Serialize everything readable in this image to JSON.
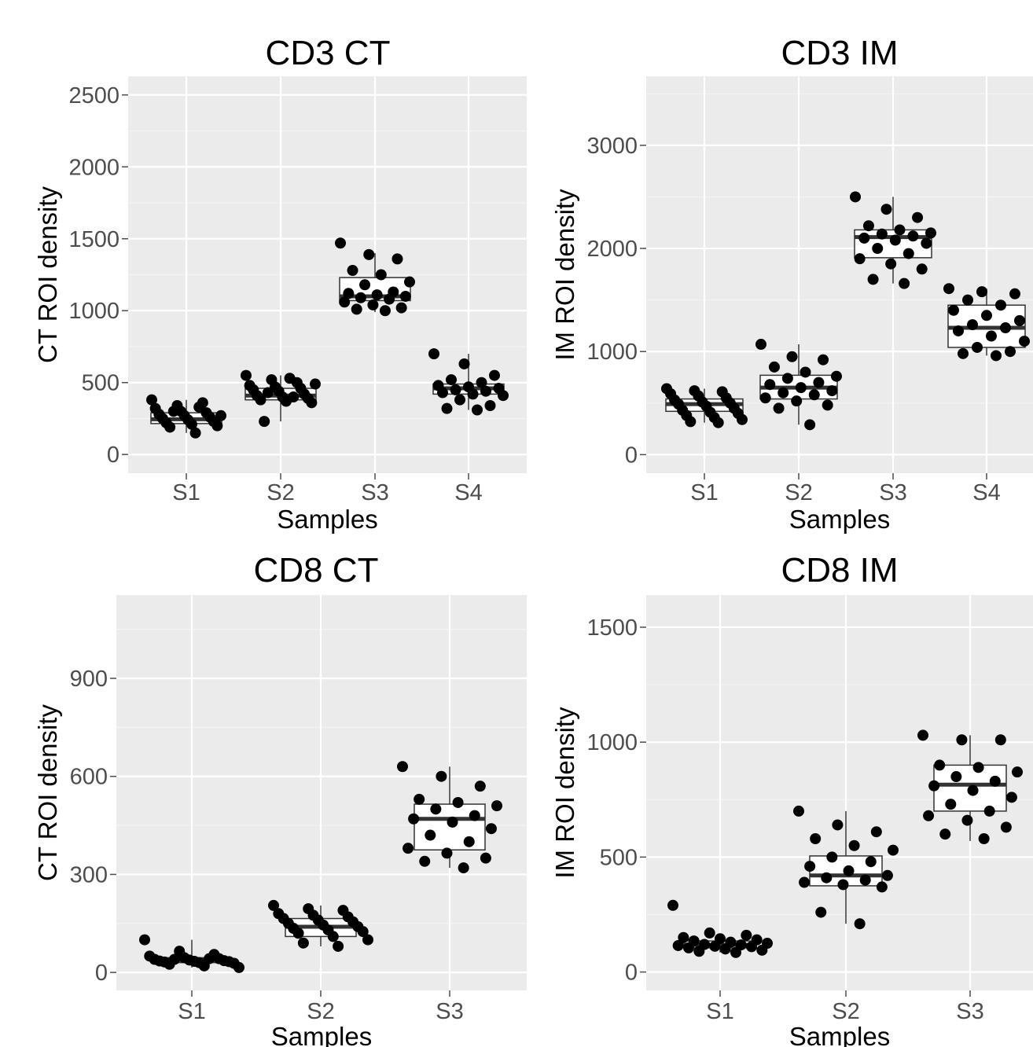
{
  "chart_data": [
    {
      "type": "box",
      "title": "CD3 CT",
      "xlabel": "Samples",
      "ylabel": "CT ROI density",
      "categories": [
        "S1",
        "S2",
        "S3",
        "S4"
      ],
      "yticks": [
        0,
        500,
        1000,
        1500,
        2000,
        2500
      ],
      "ylim": [
        -130,
        2630
      ],
      "boxes": [
        {
          "sample": "S1",
          "q1": 215,
          "median": 245,
          "q3": 290,
          "whisker_low": 150,
          "whisker_high": 380
        },
        {
          "sample": "S2",
          "q1": 380,
          "median": 410,
          "q3": 460,
          "whisker_low": 230,
          "whisker_high": 550
        },
        {
          "sample": "S3",
          "q1": 1070,
          "median": 1100,
          "q3": 1230,
          "whisker_low": 990,
          "whisker_high": 1400
        },
        {
          "sample": "S4",
          "q1": 420,
          "median": 460,
          "q3": 490,
          "whisker_low": 310,
          "whisker_high": 700
        }
      ],
      "points": [
        {
          "sample": "S1",
          "y": [
            380,
            340,
            360,
            320,
            300,
            290,
            280,
            270,
            260,
            250,
            240,
            230,
            220,
            210,
            200,
            190,
            150,
            270,
            300,
            330
          ]
        },
        {
          "sample": "S2",
          "y": [
            550,
            520,
            500,
            480,
            470,
            460,
            450,
            440,
            420,
            410,
            400,
            390,
            380,
            370,
            360,
            230,
            530,
            490,
            430,
            400
          ]
        },
        {
          "sample": "S3",
          "y": [
            1470,
            1390,
            1360,
            1280,
            1250,
            1200,
            1180,
            1130,
            1120,
            1110,
            1100,
            1090,
            1080,
            1060,
            1040,
            1020,
            1010,
            1000
          ]
        },
        {
          "sample": "S4",
          "y": [
            700,
            630,
            550,
            520,
            500,
            480,
            470,
            460,
            450,
            440,
            430,
            420,
            410,
            380,
            340,
            320,
            310
          ]
        }
      ]
    },
    {
      "type": "box",
      "title": "CD3 IM",
      "xlabel": "Samples",
      "ylabel": "IM ROI density",
      "categories": [
        "S1",
        "S2",
        "S3",
        "S4"
      ],
      "yticks": [
        0,
        1000,
        2000,
        3000
      ],
      "ylim": [
        -180,
        3670
      ],
      "boxes": [
        {
          "sample": "S1",
          "q1": 420,
          "median": 490,
          "q3": 540,
          "whisker_low": 310,
          "whisker_high": 640
        },
        {
          "sample": "S2",
          "q1": 540,
          "median": 650,
          "q3": 770,
          "whisker_low": 290,
          "whisker_high": 1070
        },
        {
          "sample": "S3",
          "q1": 1910,
          "median": 2110,
          "q3": 2180,
          "whisker_low": 1660,
          "whisker_high": 2500
        },
        {
          "sample": "S4",
          "q1": 1040,
          "median": 1230,
          "q3": 1450,
          "whisker_low": 960,
          "whisker_high": 1610
        }
      ],
      "points": [
        {
          "sample": "S1",
          "y": [
            640,
            620,
            610,
            590,
            570,
            550,
            530,
            510,
            500,
            490,
            470,
            450,
            430,
            410,
            400,
            380,
            360,
            340,
            320,
            310
          ]
        },
        {
          "sample": "S2",
          "y": [
            1070,
            950,
            920,
            850,
            800,
            760,
            740,
            700,
            680,
            650,
            620,
            600,
            580,
            550,
            520,
            480,
            450,
            290
          ]
        },
        {
          "sample": "S3",
          "y": [
            2500,
            2380,
            2300,
            2220,
            2180,
            2150,
            2140,
            2120,
            2100,
            2080,
            2050,
            2000,
            1950,
            1900,
            1850,
            1800,
            1700,
            1660
          ]
        },
        {
          "sample": "S4",
          "y": [
            1610,
            1580,
            1560,
            1500,
            1450,
            1400,
            1350,
            1300,
            1260,
            1230,
            1200,
            1150,
            1100,
            1040,
            1000,
            980,
            960
          ]
        }
      ]
    },
    {
      "type": "box",
      "title": "CD8 CT",
      "xlabel": "Samples",
      "ylabel": "CT ROI density",
      "categories": [
        "S1",
        "S2",
        "S3"
      ],
      "yticks": [
        0,
        300,
        600,
        900
      ],
      "ylim": [
        -55,
        1155
      ],
      "boxes": [
        {
          "sample": "S1",
          "q1": 30,
          "median": 38,
          "q3": 45,
          "whisker_low": 15,
          "whisker_high": 100
        },
        {
          "sample": "S2",
          "q1": 110,
          "median": 140,
          "q3": 165,
          "whisker_low": 80,
          "whisker_high": 205
        },
        {
          "sample": "S3",
          "q1": 375,
          "median": 470,
          "q3": 515,
          "whisker_low": 320,
          "whisker_high": 630
        }
      ],
      "points": [
        {
          "sample": "S1",
          "y": [
            100,
            65,
            55,
            50,
            45,
            42,
            40,
            38,
            36,
            35,
            34,
            33,
            32,
            30,
            28,
            25,
            20,
            15,
            40,
            42
          ]
        },
        {
          "sample": "S2",
          "y": [
            205,
            195,
            190,
            180,
            175,
            170,
            165,
            160,
            155,
            150,
            145,
            140,
            135,
            130,
            125,
            120,
            110,
            100,
            90,
            80
          ]
        },
        {
          "sample": "S3",
          "y": [
            630,
            600,
            570,
            530,
            520,
            510,
            500,
            480,
            470,
            460,
            440,
            420,
            400,
            380,
            365,
            350,
            340,
            320
          ]
        }
      ]
    },
    {
      "type": "box",
      "title": "CD8 IM",
      "xlabel": "Samples",
      "ylabel": "IM ROI density",
      "categories": [
        "S1",
        "S2",
        "S3"
      ],
      "yticks": [
        0,
        500,
        1000,
        1500
      ],
      "ylim": [
        -80,
        1640
      ],
      "boxes": [
        {
          "sample": "S1",
          "q1": 105,
          "median": 118,
          "q3": 135,
          "whisker_low": 85,
          "whisker_high": 165
        },
        {
          "sample": "S2",
          "q1": 375,
          "median": 420,
          "q3": 505,
          "whisker_low": 210,
          "whisker_high": 700
        },
        {
          "sample": "S3",
          "q1": 700,
          "median": 815,
          "q3": 900,
          "whisker_low": 570,
          "whisker_high": 1030
        }
      ],
      "points": [
        {
          "sample": "S1",
          "y": [
            290,
            170,
            160,
            150,
            145,
            140,
            135,
            130,
            125,
            120,
            118,
            115,
            112,
            110,
            105,
            100,
            95,
            90,
            85
          ]
        },
        {
          "sample": "S2",
          "y": [
            700,
            640,
            610,
            580,
            550,
            530,
            500,
            480,
            460,
            440,
            420,
            410,
            400,
            390,
            380,
            370,
            260,
            210
          ]
        },
        {
          "sample": "S3",
          "y": [
            1030,
            1010,
            1010,
            900,
            890,
            870,
            850,
            830,
            810,
            790,
            760,
            730,
            700,
            680,
            660,
            630,
            600,
            580
          ]
        }
      ]
    }
  ]
}
